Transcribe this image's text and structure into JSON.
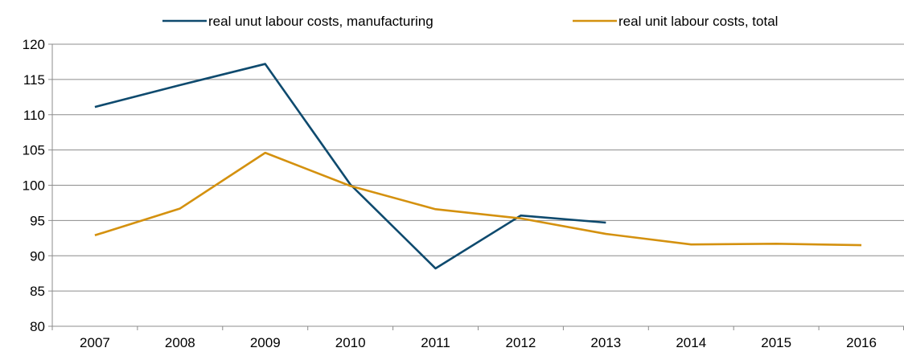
{
  "chart_data": {
    "type": "line",
    "title": "",
    "xlabel": "",
    "ylabel": "",
    "categories": [
      "2007",
      "2008",
      "2009",
      "2010",
      "2011",
      "2012",
      "2013",
      "2014",
      "2015",
      "2016"
    ],
    "ylim": [
      80,
      120
    ],
    "yticks": [
      80,
      85,
      90,
      95,
      100,
      105,
      110,
      115,
      120
    ],
    "grid": true,
    "legend_position": "top-center",
    "series": [
      {
        "name": "real unut labour costs, manufacturing",
        "color": "#0E4A6E",
        "values": [
          111.1,
          114.2,
          117.2,
          100.1,
          88.2,
          95.7,
          94.7,
          null,
          null,
          null
        ]
      },
      {
        "name": "real unit labour costs, total",
        "color": "#D4910F",
        "values": [
          92.9,
          96.7,
          104.6,
          99.9,
          96.6,
          95.3,
          93.1,
          91.6,
          91.7,
          91.5
        ]
      }
    ]
  }
}
